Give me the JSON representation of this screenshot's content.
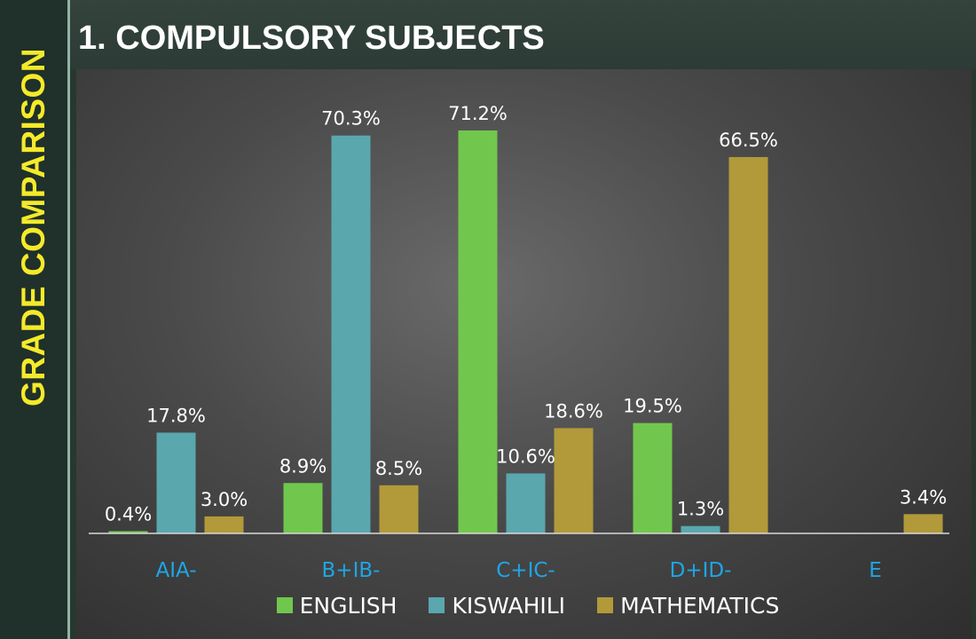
{
  "sidebar": {
    "title": "GRADE COMPARISON"
  },
  "header": {
    "title": "1. COMPULSORY SUBJECTS"
  },
  "colors": {
    "sidebar_title": "#f4ea2a",
    "english": "#71c74e",
    "kiswahili": "#5aa7ae",
    "mathematics": "#b29a3a",
    "tick_labels": "#1ea6e6"
  },
  "chart_data": {
    "type": "bar",
    "title": "",
    "xlabel": "",
    "ylabel": "",
    "categories": [
      "AIA-",
      "B+IB-",
      "C+IC-",
      "D+ID-",
      "E"
    ],
    "series": [
      {
        "name": "ENGLISH",
        "color": "#71c74e",
        "values": [
          0.4,
          8.9,
          71.2,
          19.5,
          null
        ],
        "labels": [
          "0.4%",
          "8.9%",
          "71.2%",
          "19.5%",
          ""
        ]
      },
      {
        "name": "KISWAHILI",
        "color": "#5aa7ae",
        "values": [
          17.8,
          70.3,
          10.6,
          1.3,
          null
        ],
        "labels": [
          "17.8%",
          "70.3%",
          "10.6%",
          "1.3%",
          ""
        ]
      },
      {
        "name": "MATHEMATICS",
        "color": "#b29a3a",
        "values": [
          3.0,
          8.5,
          18.6,
          66.5,
          3.4
        ],
        "labels": [
          "3.0%",
          "8.5%",
          "18.6%",
          "66.5%",
          "3.4%"
        ]
      }
    ],
    "ylim": [
      0,
      75
    ],
    "grid": false,
    "legend_position": "bottom"
  }
}
